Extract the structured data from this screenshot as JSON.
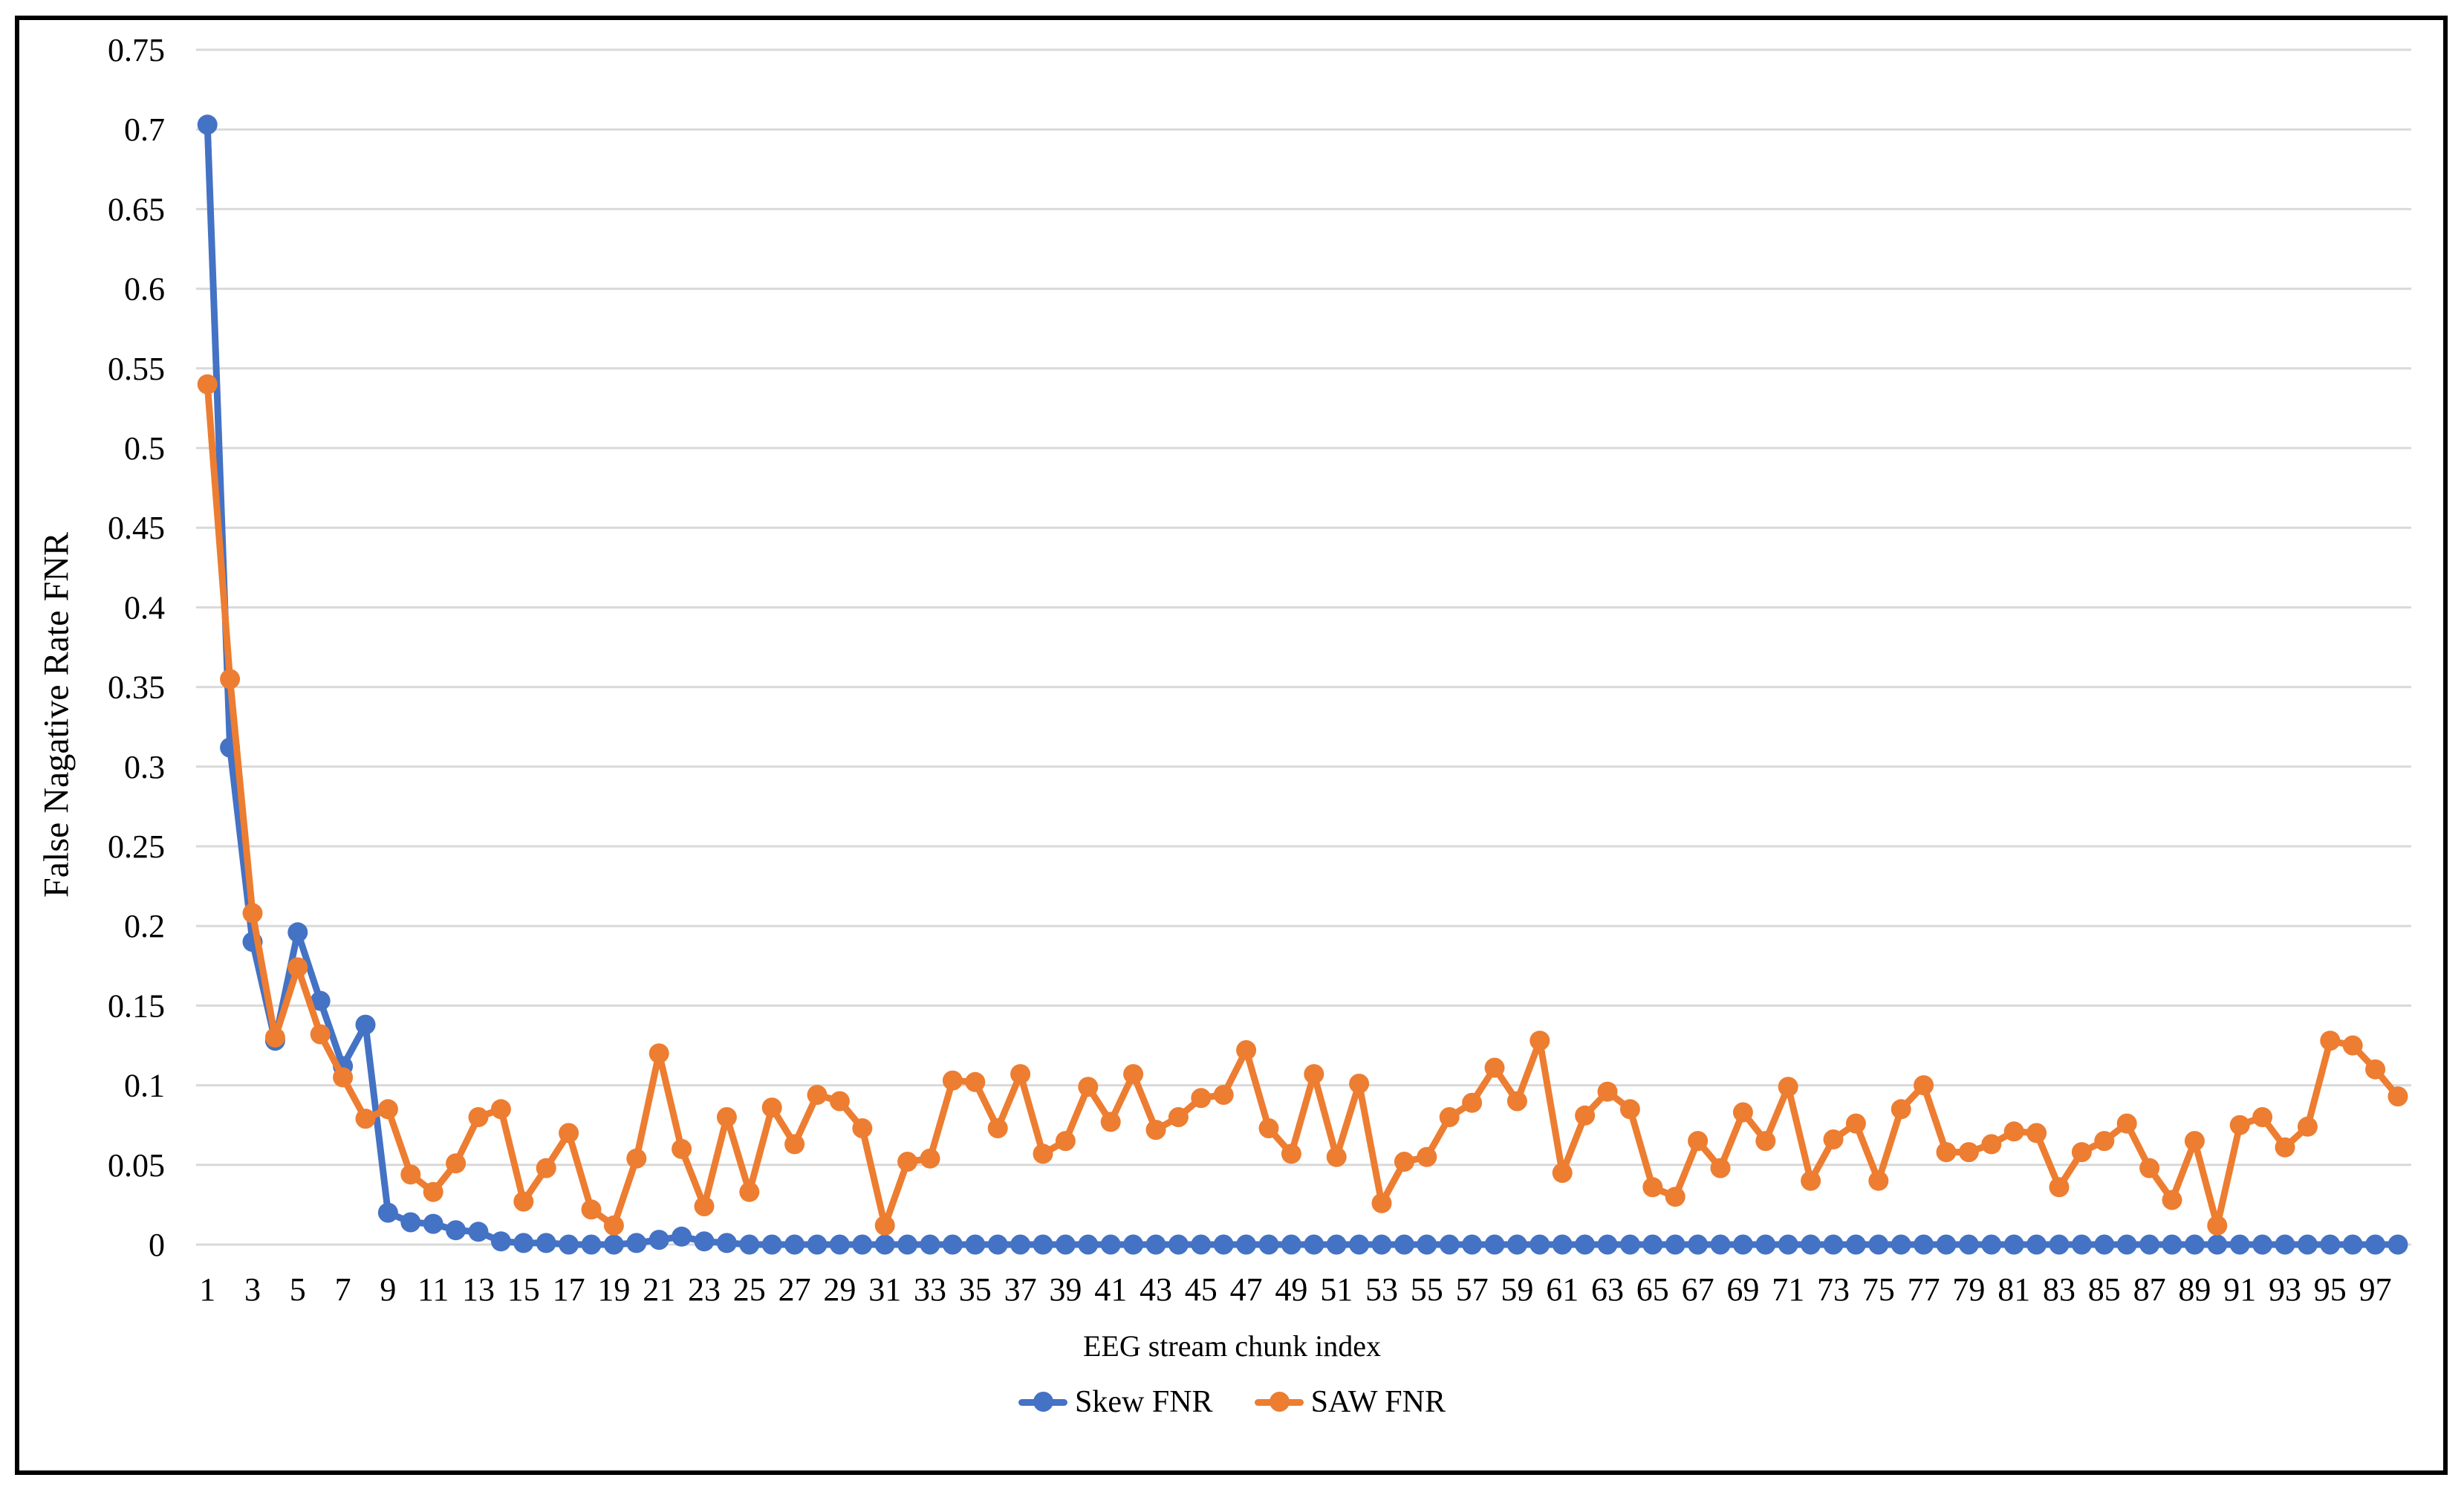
{
  "figure": {
    "y_axis_title": "False Nagative Rate FNR",
    "x_axis_title": "EEG stream chunk index"
  },
  "legend": {
    "items": [
      {
        "label": "Skew FNR",
        "color": "#4472C4"
      },
      {
        "label": "SAW FNR",
        "color": "#ED7D31"
      }
    ]
  },
  "colors": {
    "grid": "#D9D9D9",
    "text": "#000000",
    "border": "#000000",
    "background": "#FFFFFF",
    "skew_blue": "#4472C4",
    "saw_orange": "#ED7D31"
  },
  "chart_data": {
    "type": "line",
    "title": "",
    "xlabel": "EEG stream chunk index",
    "ylabel": "False Nagative Rate FNR",
    "x_range": [
      1,
      98
    ],
    "x_count": 98,
    "ylim": [
      0,
      0.75
    ],
    "ytick_step": 0.05,
    "grid": true,
    "legend_position": "bottom",
    "marker": "circle",
    "y_tick_labels": [
      "0",
      "0.05",
      "0.1",
      "0.15",
      "0.2",
      "0.25",
      "0.3",
      "0.35",
      "0.4",
      "0.45",
      "0.5",
      "0.55",
      "0.6",
      "0.65",
      "0.7",
      "0.75"
    ],
    "x_tick_labels": [
      "1",
      "3",
      "5",
      "7",
      "9",
      "11",
      "13",
      "15",
      "17",
      "19",
      "21",
      "23",
      "25",
      "27",
      "29",
      "31",
      "33",
      "35",
      "37",
      "39",
      "41",
      "43",
      "45",
      "47",
      "49",
      "51",
      "53",
      "55",
      "57",
      "59",
      "61",
      "63",
      "65",
      "67",
      "69",
      "71",
      "73",
      "75",
      "77",
      "79",
      "81",
      "83",
      "85",
      "87",
      "89",
      "91",
      "93",
      "95",
      "97"
    ],
    "series": [
      {
        "name": "Skew FNR",
        "color": "#4472C4",
        "values": [
          0.703,
          0.312,
          0.19,
          0.128,
          0.196,
          0.153,
          0.112,
          0.138,
          0.02,
          0.014,
          0.013,
          0.009,
          0.008,
          0.002,
          0.001,
          0.001,
          0,
          0,
          0,
          0.001,
          0.003,
          0.005,
          0.002,
          0.001,
          0,
          0,
          0,
          0,
          0,
          0,
          0,
          0,
          0,
          0,
          0,
          0,
          0,
          0,
          0,
          0,
          0,
          0,
          0,
          0,
          0,
          0,
          0,
          0,
          0,
          0,
          0,
          0,
          0,
          0,
          0,
          0,
          0,
          0,
          0,
          0,
          0,
          0,
          0,
          0,
          0,
          0,
          0,
          0,
          0,
          0,
          0,
          0,
          0,
          0,
          0,
          0,
          0,
          0,
          0,
          0,
          0,
          0,
          0,
          0,
          0,
          0,
          0,
          0,
          0,
          0,
          0,
          0,
          0,
          0,
          0,
          0,
          0,
          0
        ]
      },
      {
        "name": "SAW FNR",
        "color": "#ED7D31",
        "values": [
          0.54,
          0.355,
          0.208,
          0.13,
          0.174,
          0.132,
          0.105,
          0.079,
          0.085,
          0.044,
          0.033,
          0.051,
          0.08,
          0.085,
          0.027,
          0.048,
          0.07,
          0.022,
          0.012,
          0.054,
          0.12,
          0.06,
          0.024,
          0.08,
          0.033,
          0.086,
          0.063,
          0.094,
          0.09,
          0.073,
          0.012,
          0.052,
          0.054,
          0.103,
          0.102,
          0.073,
          0.107,
          0.057,
          0.065,
          0.099,
          0.077,
          0.107,
          0.072,
          0.08,
          0.092,
          0.094,
          0.122,
          0.073,
          0.057,
          0.107,
          0.055,
          0.101,
          0.026,
          0.052,
          0.055,
          0.08,
          0.089,
          0.111,
          0.09,
          0.128,
          0.045,
          0.081,
          0.096,
          0.085,
          0.036,
          0.03,
          0.065,
          0.048,
          0.083,
          0.065,
          0.099,
          0.04,
          0.066,
          0.076,
          0.04,
          0.085,
          0.1,
          0.058,
          0.058,
          0.063,
          0.071,
          0.07,
          0.036,
          0.058,
          0.065,
          0.076,
          0.048,
          0.028,
          0.065,
          0.012,
          0.075,
          0.08,
          0.061,
          0.074,
          0.128,
          0.125,
          0.11,
          0.093
        ]
      }
    ]
  }
}
